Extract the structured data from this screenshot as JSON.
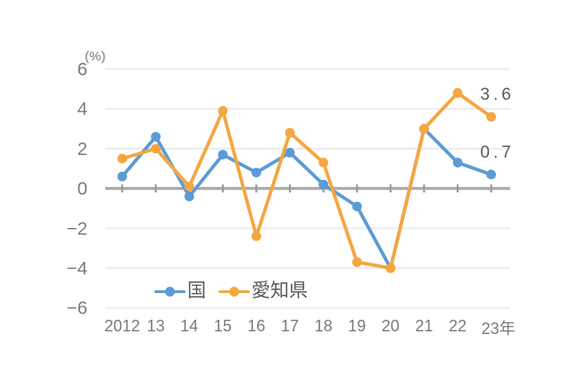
{
  "chart_data": {
    "type": "line",
    "title": "",
    "unit_label": "(%)",
    "categories": [
      "2012",
      "13",
      "14",
      "15",
      "16",
      "17",
      "18",
      "19",
      "20",
      "21",
      "22",
      "23年"
    ],
    "series": [
      {
        "name": "国",
        "color": "#5B9BD5",
        "values": [
          0.6,
          2.6,
          -0.4,
          1.7,
          0.8,
          1.8,
          0.2,
          -0.9,
          -4.0,
          3.0,
          1.3,
          0.7
        ]
      },
      {
        "name": "愛知県",
        "color": "#F5A640",
        "values": [
          1.5,
          2.0,
          0.1,
          3.9,
          -2.4,
          2.8,
          1.3,
          -3.7,
          -4.0,
          3.0,
          4.8,
          3.6
        ]
      }
    ],
    "ylim": [
      -6,
      6
    ],
    "ytick_step": 2,
    "grid": "horizontal",
    "legend_position": "bottom",
    "annotations": [
      {
        "text": "3.6",
        "series_index": 1,
        "point_index": 11
      },
      {
        "text": "0.7",
        "series_index": 0,
        "point_index": 11
      }
    ],
    "colors": {
      "gridline": "#EDEDED",
      "zero_axis": "#ACACAC",
      "zero_axis_tick": "#9B9B9B",
      "axis_text": "#7A7A7A",
      "annotation_text": "#595959"
    }
  }
}
